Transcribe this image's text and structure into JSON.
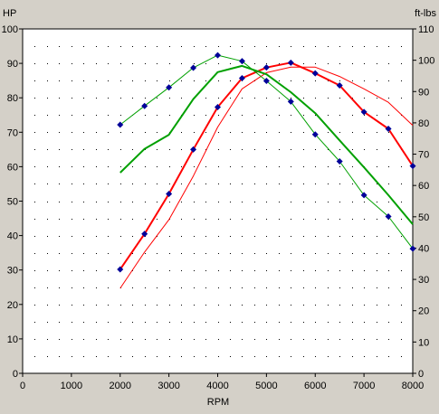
{
  "chart_data": {
    "type": "line",
    "xlabel": "RPM",
    "ylabel_left": "HP",
    "ylabel_right": "ft-lbs",
    "xlim": [
      0,
      8000
    ],
    "ylim_left": [
      0,
      100
    ],
    "ylim_right": [
      0,
      110
    ],
    "x_ticks": [
      0,
      1000,
      2000,
      3000,
      4000,
      5000,
      6000,
      7000,
      8000
    ],
    "y_ticks_left": [
      0,
      10,
      20,
      30,
      40,
      50,
      60,
      70,
      80,
      90,
      100
    ],
    "y_ticks_right": [
      0,
      10,
      20,
      30,
      40,
      50,
      60,
      70,
      80,
      90,
      100,
      110
    ],
    "grid": true,
    "series": [
      {
        "axis": "left",
        "color": "#ff0000",
        "stroke": "thick",
        "markers": true,
        "x": [
          2000,
          2500,
          3000,
          3500,
          4000,
          4500,
          5000,
          5500,
          6000,
          6500,
          7000,
          7500,
          8000
        ],
        "y": [
          30.2,
          40.5,
          52.1,
          65.0,
          77.3,
          85.7,
          88.8,
          90.2,
          87.1,
          83.6,
          75.9,
          71.0,
          60.2
        ]
      },
      {
        "axis": "left",
        "color": "#ff0000",
        "stroke": "thin",
        "markers": false,
        "x": [
          2000,
          2500,
          3000,
          3500,
          4000,
          4500,
          5000,
          5500,
          6000,
          6500,
          7000,
          7500,
          8000
        ],
        "y": [
          24.7,
          35.2,
          44.6,
          57.3,
          71.5,
          82.6,
          87.3,
          88.9,
          88.9,
          86.2,
          82.6,
          78.7,
          72.0
        ]
      },
      {
        "axis": "right",
        "color": "#00a000",
        "stroke": "thin",
        "markers": true,
        "x": [
          2000,
          2500,
          3000,
          3500,
          4000,
          4500,
          5000,
          5500,
          6000,
          6500,
          7000,
          7500,
          8000
        ],
        "y": [
          79.4,
          85.4,
          91.3,
          97.6,
          101.6,
          99.7,
          93.4,
          86.8,
          76.3,
          67.7,
          56.9,
          50.1,
          39.8
        ]
      },
      {
        "axis": "right",
        "color": "#00a000",
        "stroke": "thick",
        "markers": false,
        "x": [
          2000,
          2500,
          3000,
          3500,
          4000,
          4500,
          5000,
          5500,
          6000,
          6500,
          7000,
          7500,
          8000
        ],
        "y": [
          64.1,
          71.7,
          76.2,
          87.6,
          96.2,
          98.2,
          95.5,
          89.8,
          83.1,
          74.4,
          65.8,
          56.9,
          47.6
        ]
      }
    ]
  }
}
